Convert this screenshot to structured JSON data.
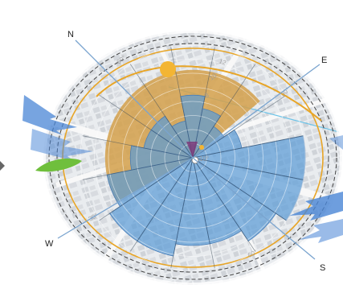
{
  "compass": {
    "north": "N",
    "east": "E",
    "south": "S",
    "west": "W"
  },
  "ring_labels": {
    "r1": "60°",
    "r2": "12",
    "r3": "10",
    "r4": "8",
    "r5": "30°",
    "r6": "10°",
    "r7": "30°",
    "r8": "60°"
  },
  "chart_data": {
    "type": "polar-bar",
    "rose_sectors": [
      {
        "direction": "N",
        "value": 4
      },
      {
        "direction": "NNE",
        "value": 3
      },
      {
        "direction": "NE",
        "value": 5
      },
      {
        "direction": "ENE",
        "value": 4
      },
      {
        "direction": "E",
        "value": 3
      },
      {
        "direction": "ESE",
        "value": 4
      },
      {
        "direction": "SE",
        "value": 9
      },
      {
        "direction": "SSE",
        "value": 9
      },
      {
        "direction": "S",
        "value": 8
      },
      {
        "direction": "SSW",
        "value": 7
      },
      {
        "direction": "SW",
        "value": 7
      },
      {
        "direction": "WSW",
        "value": 8
      },
      {
        "direction": "W",
        "value": 8
      },
      {
        "direction": "WNW",
        "value": 7
      },
      {
        "direction": "NW",
        "value": 5
      },
      {
        "direction": "NNW",
        "value": 4
      }
    ],
    "sun_sector": {
      "from_deg": -75,
      "to_deg": 95
    },
    "grid_rings": 8
  },
  "colors": {
    "rose": "#5b9bd5",
    "sun_area": "#d4a04a",
    "sun": "#f3b533",
    "sun_path": "#e8a526",
    "wind_arrow": "#4a86d6",
    "vegetation": "#6fbf3c"
  }
}
